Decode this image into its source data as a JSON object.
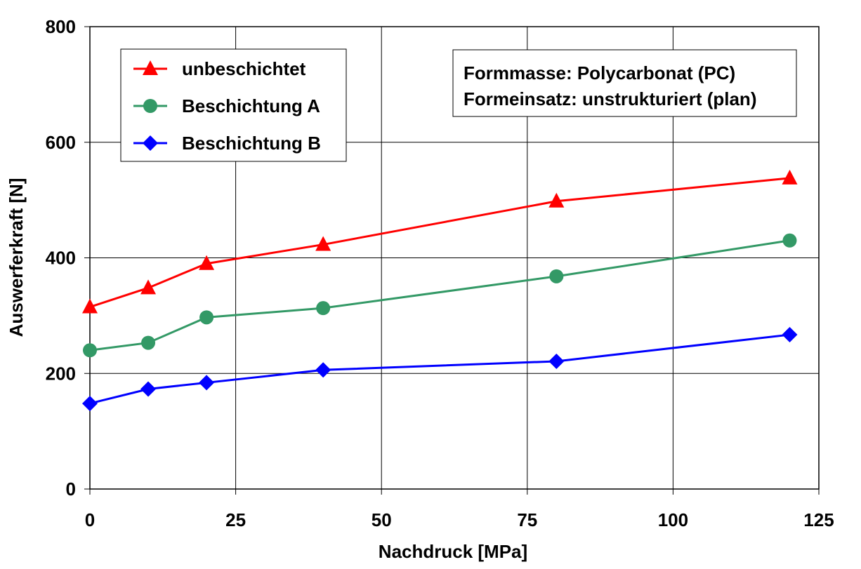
{
  "chart_data": {
    "type": "line",
    "title": "",
    "xlabel": "Nachdruck [MPa]",
    "ylabel": "Auswerferkraft [N]",
    "xlim": [
      0,
      125
    ],
    "ylim": [
      0,
      800
    ],
    "xticks": [
      0,
      25,
      50,
      75,
      100,
      125
    ],
    "yticks": [
      0,
      200,
      400,
      600,
      800
    ],
    "grid": true,
    "legend_position": "top-left",
    "x": [
      0,
      10,
      20,
      40,
      80,
      120
    ],
    "series": [
      {
        "name": "unbeschichtet",
        "color": "#ff0000",
        "marker": "triangle",
        "values": [
          315,
          348,
          390,
          423,
          498,
          538
        ]
      },
      {
        "name": "Beschichtung A",
        "color": "#339966",
        "marker": "circle",
        "values": [
          240,
          253,
          297,
          313,
          368,
          430
        ]
      },
      {
        "name": "Beschichtung B",
        "color": "#0000ff",
        "marker": "diamond",
        "values": [
          148,
          173,
          184,
          206,
          221,
          267
        ]
      }
    ],
    "annotations": [
      "Formmasse: Polycarbonat (PC)",
      "Formeinsatz: unstrukturiert (plan)"
    ]
  }
}
